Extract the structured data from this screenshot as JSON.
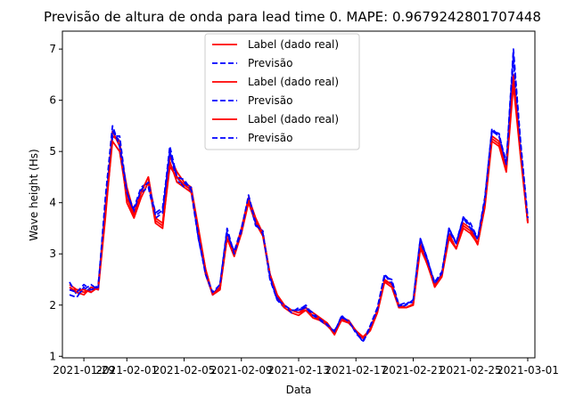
{
  "chart_data": {
    "type": "line",
    "title": "Previsão de altura de onda para lead time 0. MAPE: 0.9679242801707448",
    "xlabel": "Data",
    "ylabel": "Wave height (Hs)",
    "x_ticks": [
      "2021-01-29",
      "2021-02-01",
      "2021-02-05",
      "2021-02-09",
      "2021-02-13",
      "2021-02-17",
      "2021-02-21",
      "2021-02-25",
      "2021-03-01"
    ],
    "y_ticks": [
      1,
      2,
      3,
      4,
      5,
      6,
      7
    ],
    "xlim": [
      "2021-01-27T12:00",
      "2021-03-01T12:00"
    ],
    "ylim": [
      0.97,
      7.35
    ],
    "grid": false,
    "legend_position": "top-center",
    "colors": {
      "label": "#ff0000",
      "forecast": "#0000ff"
    },
    "x": [
      "2021-01-28T00:00",
      "2021-01-28T12:00",
      "2021-01-29T00:00",
      "2021-01-29T12:00",
      "2021-01-30T00:00",
      "2021-01-30T12:00",
      "2021-01-31T00:00",
      "2021-01-31T12:00",
      "2021-02-01T00:00",
      "2021-02-01T12:00",
      "2021-02-02T00:00",
      "2021-02-02T12:00",
      "2021-02-03T00:00",
      "2021-02-03T12:00",
      "2021-02-04T00:00",
      "2021-02-04T12:00",
      "2021-02-05T00:00",
      "2021-02-05T12:00",
      "2021-02-06T00:00",
      "2021-02-06T12:00",
      "2021-02-07T00:00",
      "2021-02-07T12:00",
      "2021-02-08T00:00",
      "2021-02-08T12:00",
      "2021-02-09T00:00",
      "2021-02-09T12:00",
      "2021-02-10T00:00",
      "2021-02-10T12:00",
      "2021-02-11T00:00",
      "2021-02-11T12:00",
      "2021-02-12T00:00",
      "2021-02-12T12:00",
      "2021-02-13T00:00",
      "2021-02-13T12:00",
      "2021-02-14T00:00",
      "2021-02-14T12:00",
      "2021-02-15T00:00",
      "2021-02-15T12:00",
      "2021-02-16T00:00",
      "2021-02-16T12:00",
      "2021-02-17T00:00",
      "2021-02-17T12:00",
      "2021-02-18T00:00",
      "2021-02-18T12:00",
      "2021-02-19T00:00",
      "2021-02-19T12:00",
      "2021-02-20T00:00",
      "2021-02-20T12:00",
      "2021-02-21T00:00",
      "2021-02-21T12:00",
      "2021-02-22T00:00",
      "2021-02-22T12:00",
      "2021-02-23T00:00",
      "2021-02-23T12:00",
      "2021-02-24T00:00",
      "2021-02-24T12:00",
      "2021-02-25T00:00",
      "2021-02-25T12:00",
      "2021-02-26T00:00",
      "2021-02-26T12:00",
      "2021-02-27T00:00",
      "2021-02-27T12:00",
      "2021-02-28T00:00",
      "2021-02-28T12:00",
      "2021-03-01T00:00"
    ],
    "series": [
      {
        "name": "Label (dado real)",
        "style": "solid",
        "values": [
          2.4,
          2.3,
          2.25,
          2.3,
          2.35,
          3.9,
          5.4,
          5.1,
          4.3,
          3.8,
          4.2,
          4.5,
          3.7,
          3.6,
          4.9,
          4.6,
          4.4,
          4.3,
          3.5,
          2.7,
          2.2,
          2.3,
          3.4,
          3.0,
          3.5,
          4.1,
          3.7,
          3.4,
          2.6,
          2.2,
          2.0,
          1.9,
          1.85,
          1.95,
          1.85,
          1.75,
          1.65,
          1.45,
          1.75,
          1.7,
          1.5,
          1.35,
          1.55,
          1.9,
          2.5,
          2.4,
          2.0,
          1.95,
          2.0,
          3.2,
          2.8,
          2.4,
          2.6,
          3.4,
          3.1,
          3.6,
          3.5,
          3.2,
          4.0,
          5.3,
          5.2,
          4.7,
          6.5,
          5.0,
          3.6
        ]
      },
      {
        "name": "Previsão",
        "style": "dashed",
        "values": [
          2.45,
          2.2,
          2.3,
          2.4,
          2.3,
          4.0,
          5.4,
          5.2,
          4.1,
          3.9,
          4.3,
          4.4,
          3.8,
          3.9,
          5.0,
          4.4,
          4.4,
          4.2,
          3.3,
          2.6,
          2.2,
          2.4,
          3.5,
          3.0,
          3.4,
          4.1,
          3.6,
          3.4,
          2.5,
          2.1,
          1.95,
          1.9,
          1.9,
          2.0,
          1.8,
          1.7,
          1.6,
          1.45,
          1.8,
          1.65,
          1.5,
          1.3,
          1.6,
          1.95,
          2.6,
          2.4,
          1.95,
          2.0,
          2.1,
          3.3,
          2.9,
          2.4,
          2.6,
          3.5,
          3.2,
          3.7,
          3.6,
          3.3,
          4.1,
          5.4,
          5.3,
          4.8,
          6.9,
          5.2,
          3.7
        ]
      },
      {
        "name": "Label (dado real)",
        "style": "solid",
        "values": [
          2.35,
          2.25,
          2.2,
          2.35,
          2.3,
          3.7,
          5.3,
          5.2,
          4.0,
          3.7,
          4.1,
          4.4,
          3.6,
          3.5,
          4.8,
          4.4,
          4.3,
          4.2,
          3.4,
          2.6,
          2.2,
          2.3,
          3.3,
          2.95,
          3.4,
          4.0,
          3.6,
          3.35,
          2.55,
          2.15,
          1.95,
          1.85,
          1.8,
          1.9,
          1.75,
          1.7,
          1.6,
          1.45,
          1.7,
          1.65,
          1.5,
          1.35,
          1.5,
          1.85,
          2.45,
          2.35,
          1.95,
          1.95,
          2.0,
          3.1,
          2.8,
          2.35,
          2.55,
          3.3,
          3.1,
          3.5,
          3.4,
          3.2,
          3.9,
          5.2,
          5.1,
          4.6,
          6.3,
          4.9,
          3.6
        ]
      },
      {
        "name": "Previsão",
        "style": "dashed",
        "values": [
          2.2,
          2.15,
          2.35,
          2.25,
          2.4,
          3.9,
          5.3,
          5.3,
          4.2,
          3.8,
          4.2,
          4.3,
          3.7,
          3.8,
          5.0,
          4.5,
          4.3,
          4.3,
          3.3,
          2.65,
          2.2,
          2.35,
          3.4,
          3.05,
          3.5,
          4.1,
          3.55,
          3.45,
          2.5,
          2.15,
          2.0,
          1.85,
          1.95,
          1.95,
          1.85,
          1.7,
          1.6,
          1.5,
          1.75,
          1.7,
          1.45,
          1.3,
          1.55,
          1.9,
          2.55,
          2.5,
          2.0,
          2.05,
          2.05,
          3.25,
          2.85,
          2.45,
          2.65,
          3.45,
          3.2,
          3.7,
          3.5,
          3.3,
          4.0,
          5.4,
          5.35,
          4.7,
          6.8,
          5.1,
          3.65
        ]
      },
      {
        "name": "Label (dado real)",
        "style": "solid",
        "values": [
          2.3,
          2.3,
          2.3,
          2.25,
          2.35,
          3.8,
          5.2,
          5.0,
          4.1,
          3.75,
          4.2,
          4.5,
          3.65,
          3.55,
          4.7,
          4.5,
          4.35,
          4.25,
          3.45,
          2.7,
          2.2,
          2.35,
          3.3,
          3.0,
          3.45,
          4.05,
          3.65,
          3.4,
          2.6,
          2.2,
          2.0,
          1.9,
          1.85,
          1.9,
          1.8,
          1.72,
          1.62,
          1.42,
          1.72,
          1.68,
          1.5,
          1.38,
          1.52,
          1.88,
          2.48,
          2.4,
          1.98,
          1.95,
          2.02,
          3.15,
          2.78,
          2.38,
          2.58,
          3.35,
          3.1,
          3.55,
          3.45,
          3.18,
          3.95,
          5.25,
          5.15,
          4.65,
          6.4,
          4.95,
          3.62
        ]
      },
      {
        "name": "Previsão",
        "style": "dashed",
        "values": [
          2.3,
          2.25,
          2.4,
          2.3,
          2.35,
          4.1,
          5.5,
          5.1,
          4.2,
          3.85,
          4.25,
          4.4,
          3.75,
          3.85,
          5.1,
          4.5,
          4.45,
          4.25,
          3.35,
          2.6,
          2.25,
          2.4,
          3.45,
          3.0,
          3.45,
          4.15,
          3.6,
          3.4,
          2.55,
          2.1,
          2.0,
          1.9,
          1.9,
          1.95,
          1.8,
          1.72,
          1.62,
          1.48,
          1.78,
          1.68,
          1.48,
          1.28,
          1.58,
          1.92,
          2.6,
          2.45,
          1.98,
          2.02,
          2.1,
          3.3,
          2.88,
          2.42,
          2.62,
          3.5,
          3.22,
          3.72,
          3.55,
          3.28,
          4.05,
          5.45,
          5.3,
          4.75,
          7.0,
          5.15,
          3.7
        ]
      }
    ]
  }
}
